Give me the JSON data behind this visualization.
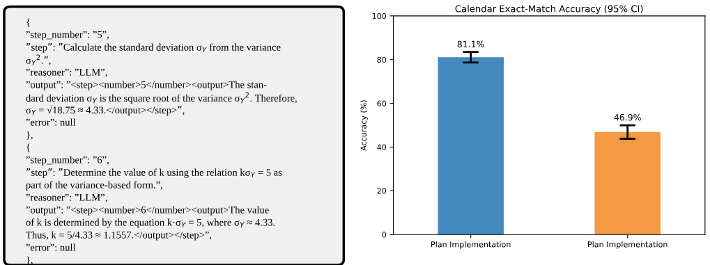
{
  "chart_data": [
    {
      "type": "other",
      "annotations": [
        "{",
        "”step_number”: ”5”,",
        "”step”: ”Calculate the standard deviation σ$_{Y}$ from the variance",
        "σ$_{Y}$$^{2}$.”,",
        "”reasoner”: ”LLM”,",
        "”output”: ”<step><number>5</number><output>The stan-",
        "dard deviation σ$_{Y}$ is the square root of the variance σ$_{Y}$$^{2}$. Therefore,",
        "σ$_{Y}$ = √18.75 ≈ 4.33.</output></step>”,",
        "”error”: null",
        "},",
        "{",
        "”step_number”: ”6”,",
        "”step”: ”Determine the value of k using the relation kσ$_{Y}$ = 5 as",
        "part of the variance-based form.”,",
        "”reasoner”: ”LLM”,",
        "”output”: ”<step><number>6</number><output>The value",
        "of k is determined by the equation k·σ$_{Y}$ = 5, where σ$_{Y}$ ≈ 4.33.",
        "Thus, k = 5/4.33 ≈ 1.1557.</output></step>”,",
        "”error”: null",
        "},"
      ]
    },
    {
      "type": "bar",
      "title": "Calendar Exact-Match Accuracy (95% CI)",
      "ylabel": "Accuracy (%)",
      "categories": [
        "Plan Implementation",
        "Plan Implementation"
      ],
      "values": [
        81.1,
        46.9
      ],
      "colors": [
        "#4389be",
        "#f39a42"
      ],
      "errors": [
        2.4,
        3.1
      ],
      "value_labels": [
        "81.1%",
        "46.9%"
      ],
      "ylim": [
        0,
        100
      ],
      "yticks": [
        0,
        20,
        40,
        60,
        80,
        100
      ],
      "grid": false,
      "legend": false
    }
  ]
}
